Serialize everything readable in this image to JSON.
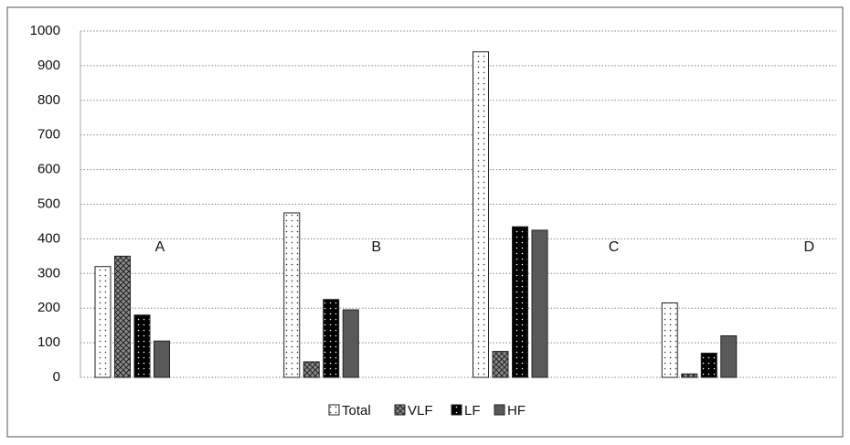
{
  "chart_data": {
    "type": "bar",
    "categories": [
      "A",
      "B",
      "C",
      "D"
    ],
    "series": [
      {
        "name": "Total",
        "color": "#ffffff",
        "pattern": "dots",
        "values": [
          320,
          475,
          940,
          215
        ]
      },
      {
        "name": "VLF",
        "color": "#8c8c8c",
        "pattern": "crosshatch",
        "values": [
          350,
          45,
          75,
          10
        ]
      },
      {
        "name": "LF",
        "color": "#000000",
        "pattern": "dots",
        "values": [
          180,
          225,
          435,
          70
        ]
      },
      {
        "name": "HF",
        "color": "#595959",
        "pattern": "solid",
        "values": [
          105,
          195,
          425,
          120
        ]
      }
    ],
    "ylim": [
      0,
      1000
    ],
    "yticks": [
      0,
      100,
      200,
      300,
      400,
      500,
      600,
      700,
      800,
      900,
      1000
    ],
    "grid": true,
    "legend": "bottom"
  }
}
